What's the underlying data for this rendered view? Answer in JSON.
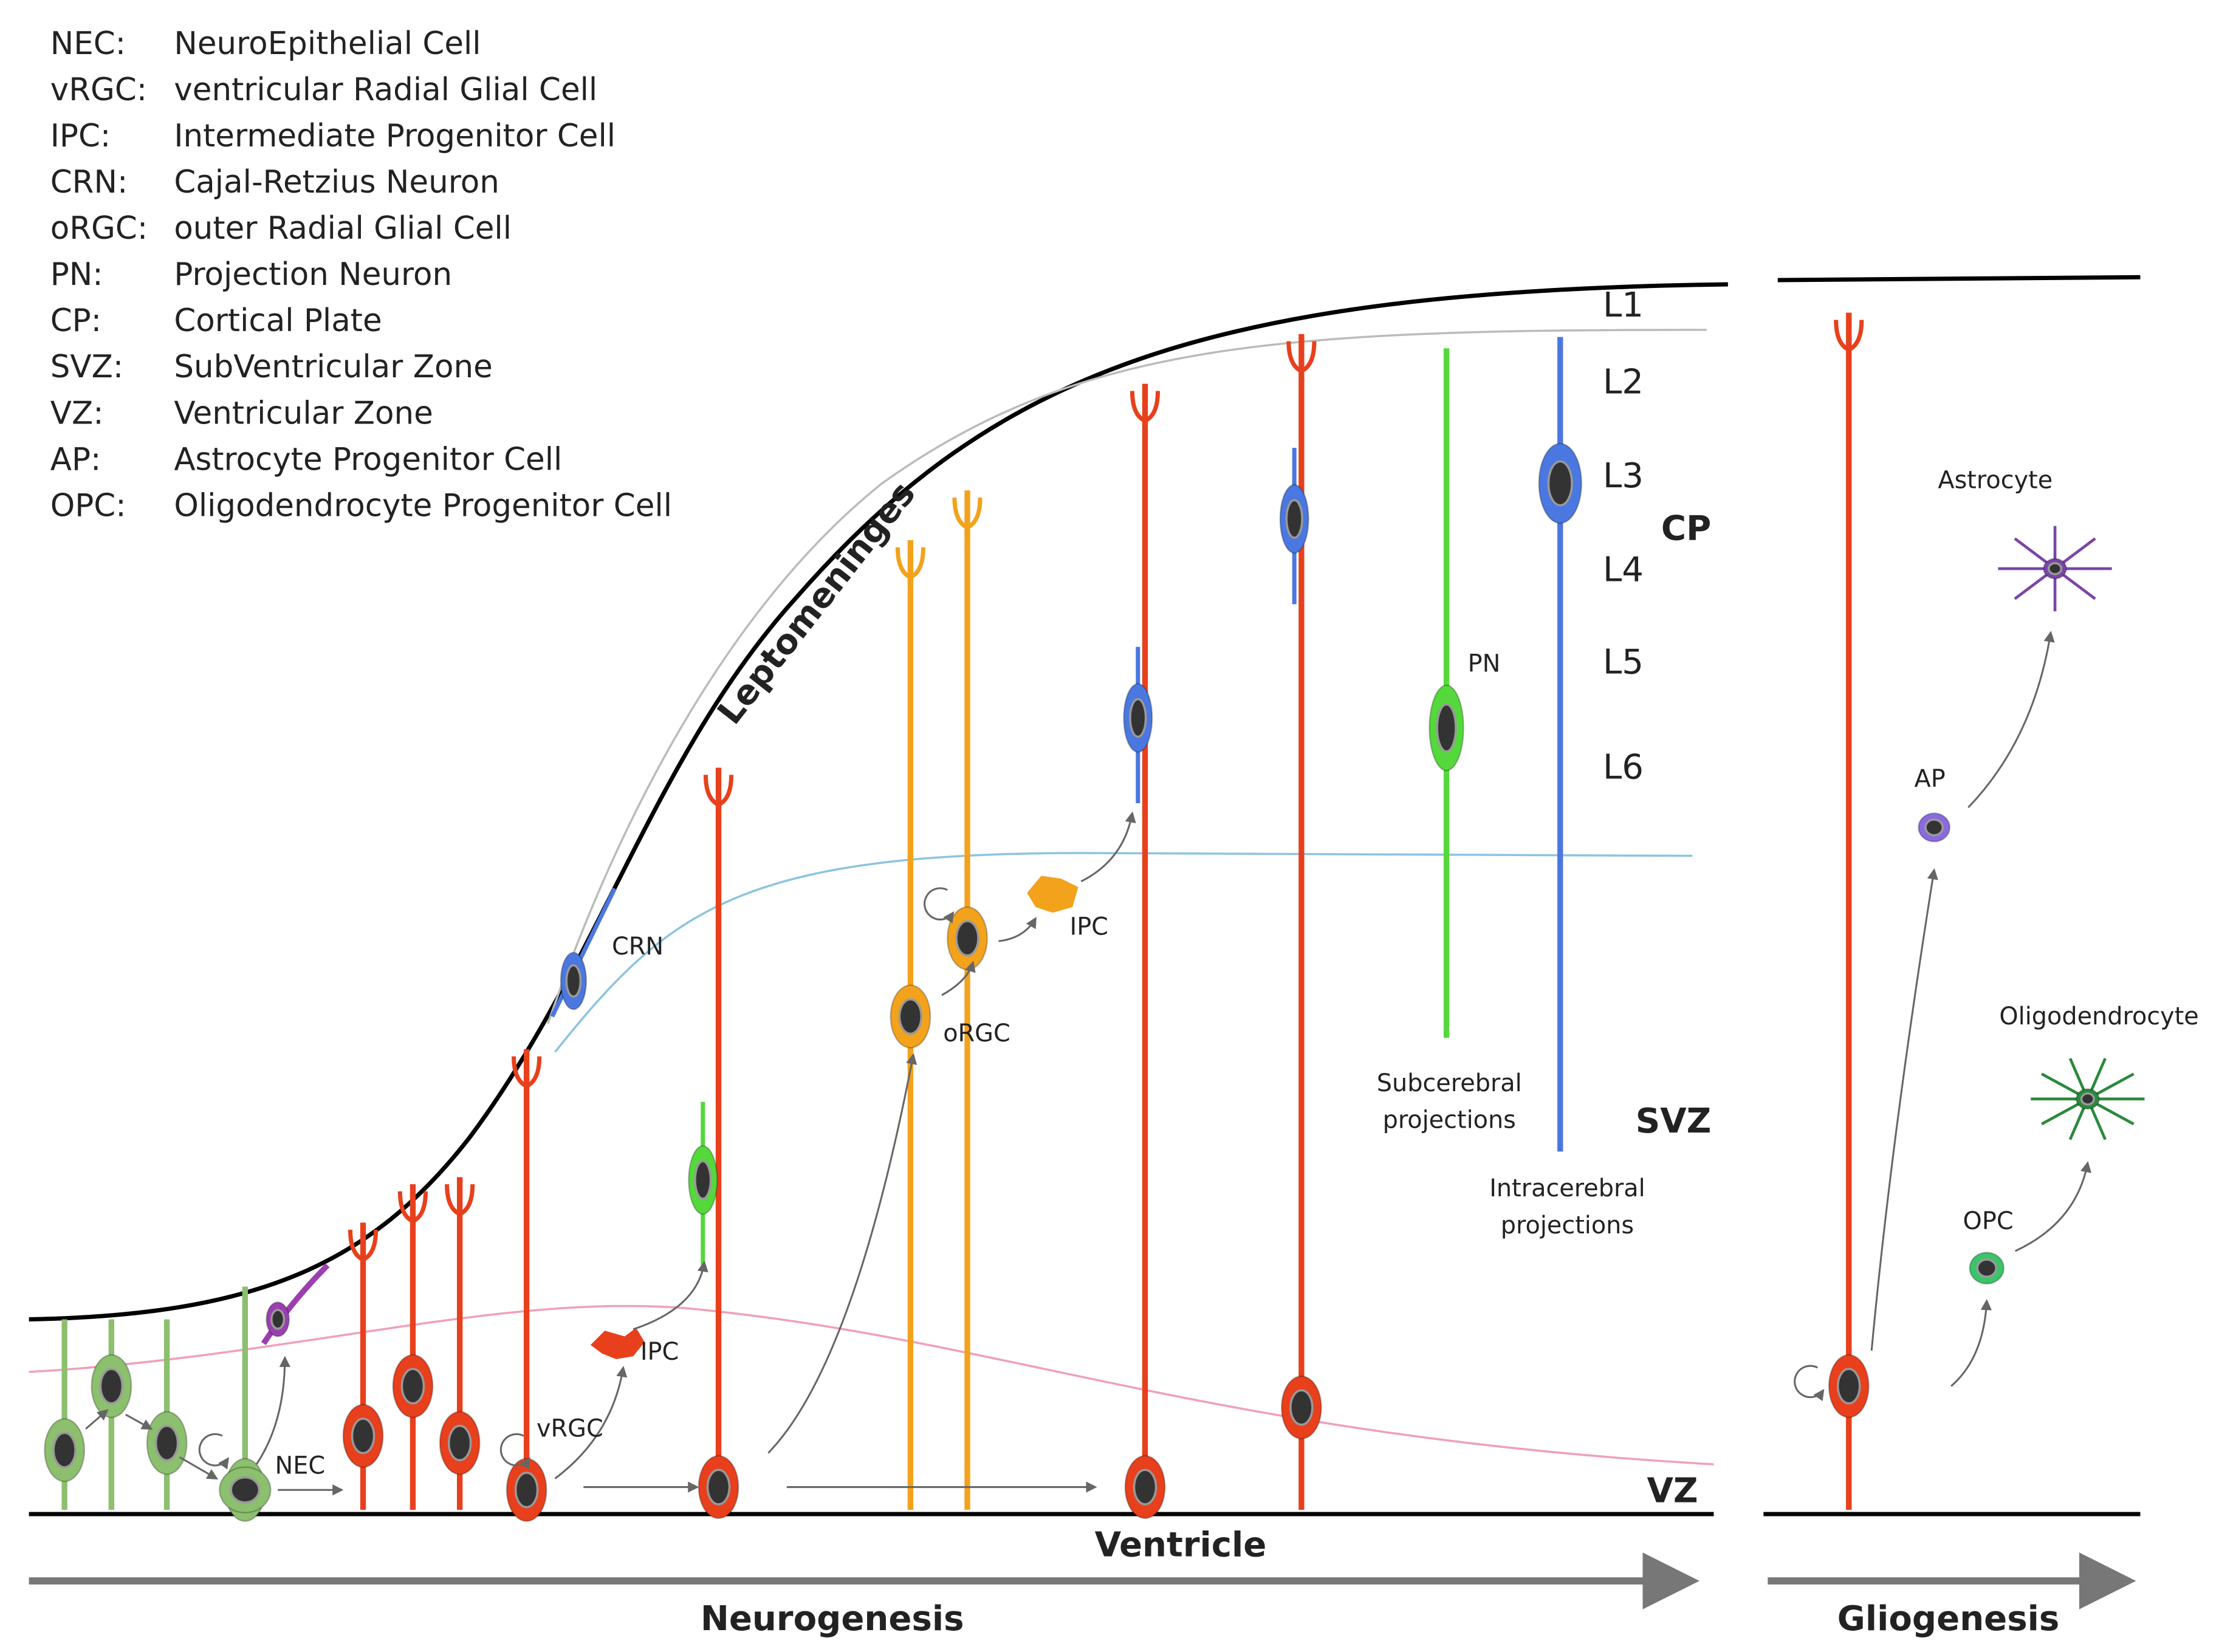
{
  "legend": [
    {
      "abbr": "NEC:",
      "full": "NeuroEpithelial Cell"
    },
    {
      "abbr": "vRGC:",
      "full": "ventricular Radial Glial Cell"
    },
    {
      "abbr": "IPC:",
      "full": "Intermediate Progenitor Cell"
    },
    {
      "abbr": "CRN:",
      "full": "Cajal-Retzius Neuron"
    },
    {
      "abbr": "oRGC:",
      "full": "outer Radial Glial Cell"
    },
    {
      "abbr": "PN:",
      "full": "Projection Neuron"
    },
    {
      "abbr": "CP:",
      "full": "Cortical Plate"
    },
    {
      "abbr": "SVZ:",
      "full": "SubVentricular Zone"
    },
    {
      "abbr": "VZ:",
      "full": "Ventricular Zone"
    },
    {
      "abbr": "AP:",
      "full": "Astrocyte Progenitor Cell"
    },
    {
      "abbr": "OPC:",
      "full": "Oligodendrocyte Progenitor Cell"
    }
  ],
  "layers": [
    "L1",
    "L2",
    "L3",
    "L4",
    "L5",
    "L6"
  ],
  "zones": {
    "cp": "CP",
    "svz": "SVZ",
    "vz": "VZ"
  },
  "regions": {
    "leptomeninges": "Leptomeninges",
    "ventricle": "Ventricle"
  },
  "cell_labels": {
    "nec": "NEC",
    "vrgc": "vRGC",
    "ipc_vz": "IPC",
    "crn": "CRN",
    "orgc": "oRGC",
    "ipc_svz": "IPC",
    "pn": "PN",
    "subcerebral": [
      "Subcerebral",
      "projections"
    ],
    "intracerebral": [
      "Intracerebral",
      "projections"
    ],
    "astrocyte": "Astrocyte",
    "ap": "AP",
    "oligodendrocyte": "Oligodendrocyte",
    "opc": "OPC"
  },
  "phases": {
    "neurogenesis": "Neurogenesis",
    "gliogenesis": "Gliogenesis"
  }
}
